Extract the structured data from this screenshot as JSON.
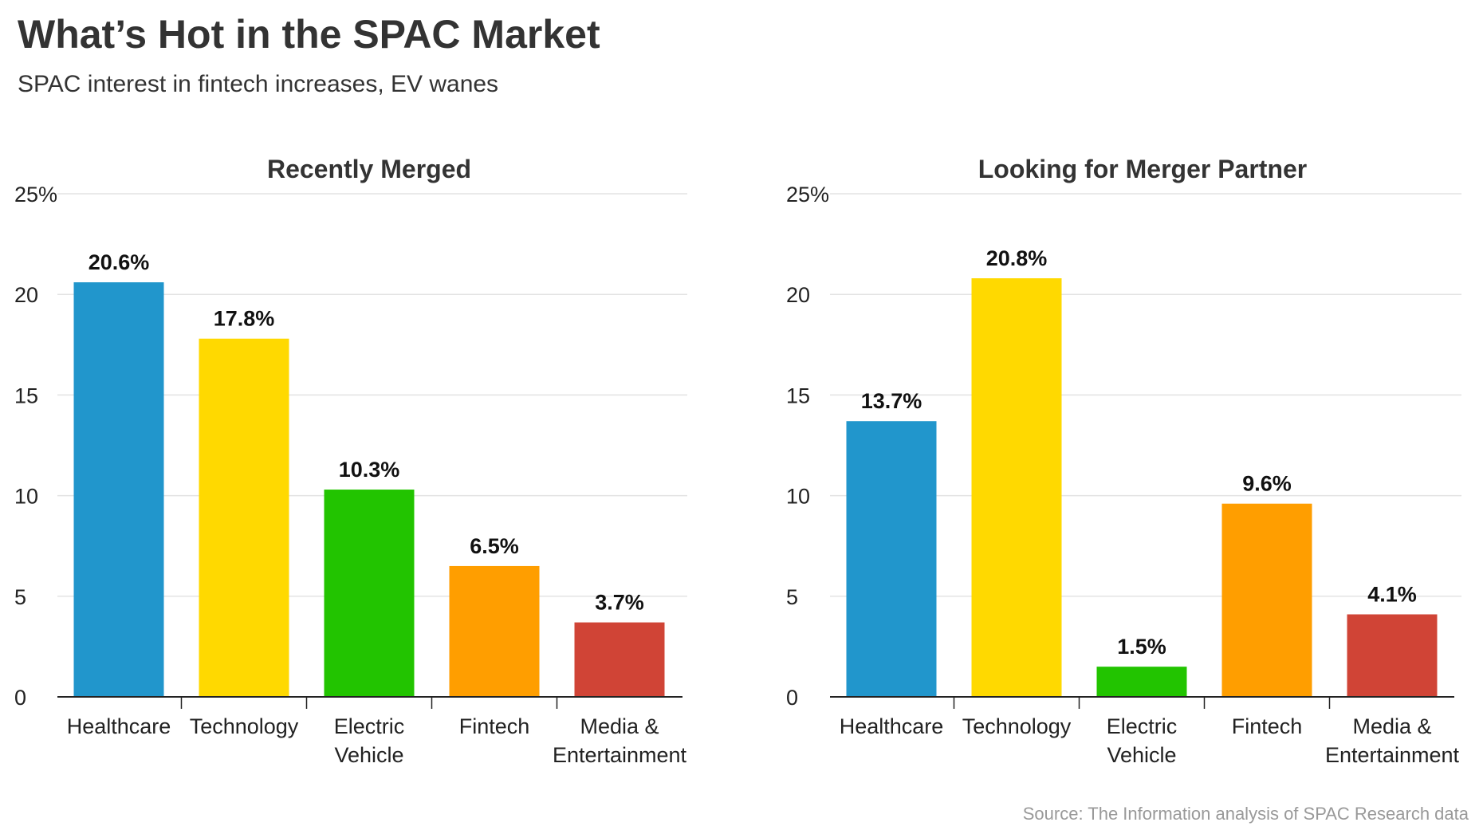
{
  "title": "What’s Hot in the SPAC Market",
  "subtitle": "SPAC interest in fintech increases, EV wanes",
  "source": "Source: The Information analysis of SPAC Research data",
  "chart_data": [
    {
      "type": "bar",
      "title": "Recently Merged",
      "categories": [
        [
          "Healthcare"
        ],
        [
          "Technology"
        ],
        [
          "Electric",
          "Vehicle"
        ],
        [
          "Fintech"
        ],
        [
          "Media &",
          "Entertainment"
        ]
      ],
      "values": [
        20.6,
        17.8,
        10.3,
        6.5,
        3.7
      ],
      "data_labels": [
        "20.6%",
        "17.8%",
        "10.3%",
        "6.5%",
        "3.7%"
      ],
      "colors": [
        "#2196CC",
        "#FFD900",
        "#22C400",
        "#FF9E00",
        "#D04436"
      ],
      "ylim": [
        0,
        25
      ],
      "yticks": [
        "0",
        "5",
        "10",
        "15",
        "20",
        "25%"
      ],
      "grid": true
    },
    {
      "type": "bar",
      "title": "Looking for Merger Partner",
      "categories": [
        [
          "Healthcare"
        ],
        [
          "Technology"
        ],
        [
          "Electric",
          "Vehicle"
        ],
        [
          "Fintech"
        ],
        [
          "Media &",
          "Entertainment"
        ]
      ],
      "values": [
        13.7,
        20.8,
        1.5,
        9.6,
        4.1
      ],
      "data_labels": [
        "13.7%",
        "20.8%",
        "1.5%",
        "9.6%",
        "4.1%"
      ],
      "colors": [
        "#2196CC",
        "#FFD900",
        "#22C400",
        "#FF9E00",
        "#D04436"
      ],
      "ylim": [
        0,
        25
      ],
      "yticks": [
        "0",
        "5",
        "10",
        "15",
        "20",
        "25%"
      ],
      "grid": true
    }
  ]
}
